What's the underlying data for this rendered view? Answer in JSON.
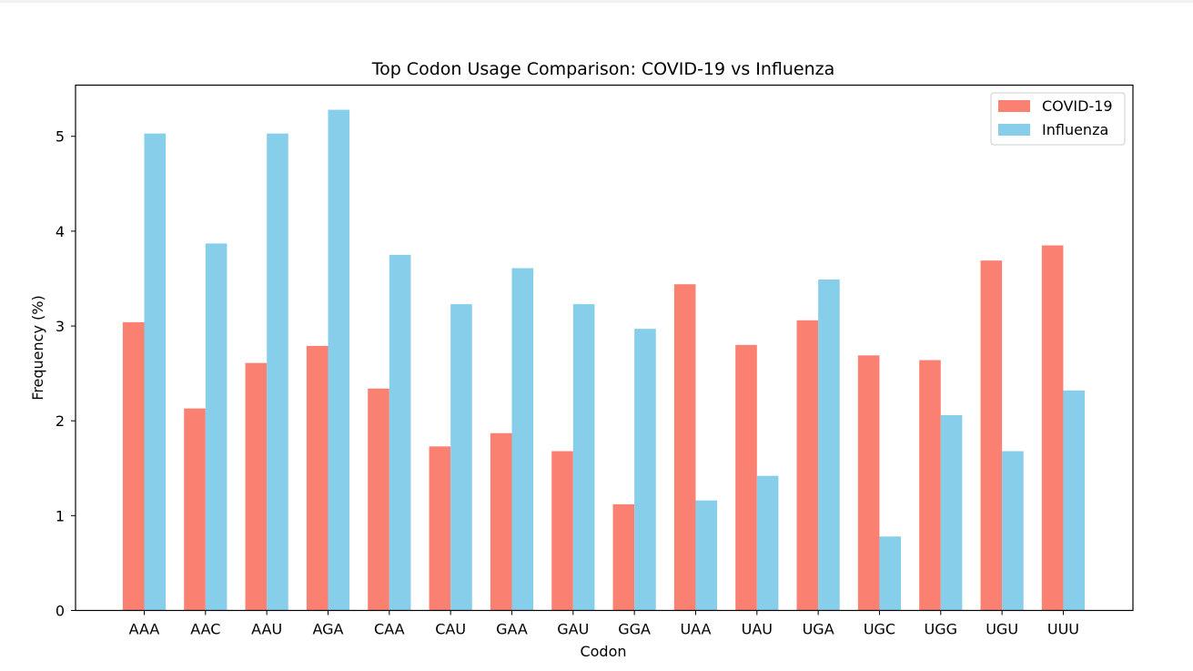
{
  "chart_data": {
    "type": "bar",
    "title": "Top Codon Usage Comparison: COVID-19 vs Influenza",
    "xlabel": "Codon",
    "ylabel": "Frequency (%)",
    "categories": [
      "AAA",
      "AAC",
      "AAU",
      "AGA",
      "CAA",
      "CAU",
      "GAA",
      "GAU",
      "GGA",
      "UAA",
      "UAU",
      "UGA",
      "UGC",
      "UGG",
      "UGU",
      "UUU"
    ],
    "series": [
      {
        "name": "COVID-19",
        "color": "#fa8072",
        "values": [
          3.04,
          2.13,
          2.61,
          2.79,
          2.34,
          1.73,
          1.87,
          1.68,
          1.12,
          3.44,
          2.8,
          3.06,
          2.69,
          2.64,
          3.69,
          3.85
        ]
      },
      {
        "name": "Influenza",
        "color": "#87ceeb",
        "values": [
          5.03,
          3.87,
          5.03,
          5.28,
          3.75,
          3.23,
          3.61,
          3.23,
          2.97,
          1.16,
          1.42,
          3.49,
          0.78,
          2.06,
          1.68,
          2.32
        ]
      }
    ],
    "ylim": [
      0,
      5.54
    ],
    "yticks": [
      0,
      1,
      2,
      3,
      4,
      5
    ],
    "grid": false,
    "legend_position": "top-right"
  }
}
